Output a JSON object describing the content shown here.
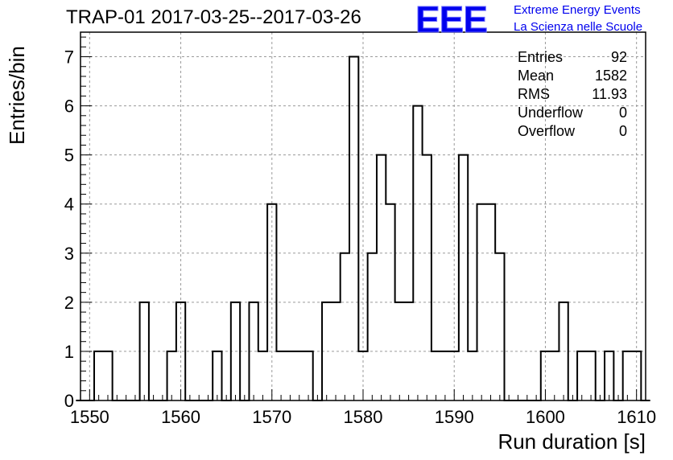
{
  "header": {
    "title": "TRAP-01 2017-03-25--2017-03-26"
  },
  "logo": {
    "mark": "EEE",
    "line1": "Extreme Energy Events",
    "line2": "La Scienza nelle Scuole",
    "color": "#0000ee"
  },
  "stats": [
    {
      "label": "Entries",
      "value": "92"
    },
    {
      "label": "Mean",
      "value": "1582"
    },
    {
      "label": "RMS",
      "value": "11.93"
    },
    {
      "label": "Underflow",
      "value": "0"
    },
    {
      "label": "Overflow",
      "value": "0"
    }
  ],
  "chart_data": {
    "type": "bar",
    "histogram": true,
    "xlabel": "Run duration [s]",
    "ylabel": "Entries/bin",
    "xlim": [
      1549,
      1611
    ],
    "ylim": [
      0,
      7.5
    ],
    "xticks": [
      1550,
      1560,
      1570,
      1580,
      1590,
      1600,
      1610
    ],
    "yticks": [
      0,
      1,
      2,
      3,
      4,
      5,
      6,
      7
    ],
    "grid": true,
    "bin_width": 1,
    "bins": [
      {
        "x": 1551,
        "count": 1
      },
      {
        "x": 1552,
        "count": 1
      },
      {
        "x": 1556,
        "count": 2
      },
      {
        "x": 1559,
        "count": 1
      },
      {
        "x": 1560,
        "count": 2
      },
      {
        "x": 1564,
        "count": 1
      },
      {
        "x": 1566,
        "count": 2
      },
      {
        "x": 1568,
        "count": 2
      },
      {
        "x": 1569,
        "count": 1
      },
      {
        "x": 1570,
        "count": 4
      },
      {
        "x": 1571,
        "count": 1
      },
      {
        "x": 1572,
        "count": 1
      },
      {
        "x": 1573,
        "count": 1
      },
      {
        "x": 1574,
        "count": 1
      },
      {
        "x": 1576,
        "count": 2
      },
      {
        "x": 1577,
        "count": 2
      },
      {
        "x": 1578,
        "count": 3
      },
      {
        "x": 1579,
        "count": 7
      },
      {
        "x": 1580,
        "count": 1
      },
      {
        "x": 1581,
        "count": 3
      },
      {
        "x": 1582,
        "count": 5
      },
      {
        "x": 1583,
        "count": 4
      },
      {
        "x": 1584,
        "count": 2
      },
      {
        "x": 1585,
        "count": 2
      },
      {
        "x": 1586,
        "count": 6
      },
      {
        "x": 1587,
        "count": 5
      },
      {
        "x": 1588,
        "count": 1
      },
      {
        "x": 1589,
        "count": 1
      },
      {
        "x": 1590,
        "count": 1
      },
      {
        "x": 1591,
        "count": 5
      },
      {
        "x": 1592,
        "count": 1
      },
      {
        "x": 1593,
        "count": 4
      },
      {
        "x": 1594,
        "count": 4
      },
      {
        "x": 1595,
        "count": 3
      },
      {
        "x": 1600,
        "count": 1
      },
      {
        "x": 1601,
        "count": 1
      },
      {
        "x": 1602,
        "count": 2
      },
      {
        "x": 1604,
        "count": 1
      },
      {
        "x": 1605,
        "count": 1
      },
      {
        "x": 1607,
        "count": 1
      },
      {
        "x": 1609,
        "count": 1
      },
      {
        "x": 1610,
        "count": 1
      }
    ]
  }
}
